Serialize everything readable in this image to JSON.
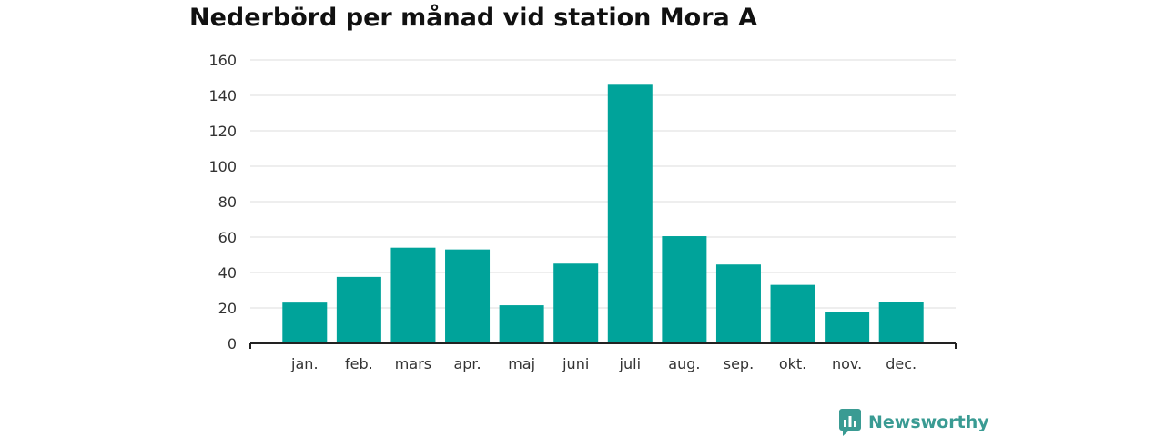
{
  "chart_data": {
    "type": "bar",
    "title": "Nederbörd per månad vid station Mora A",
    "categories": [
      "jan.",
      "feb.",
      "mars",
      "apr.",
      "maj",
      "juni",
      "juli",
      "aug.",
      "sep.",
      "okt.",
      "nov.",
      "dec."
    ],
    "values": [
      23,
      37.5,
      54,
      53,
      21.5,
      45,
      146,
      60.5,
      44.5,
      33,
      17.5,
      23.5
    ],
    "yticks": [
      "0",
      "20",
      "40",
      "60",
      "80",
      "100",
      "120",
      "140",
      "160"
    ],
    "ylim": [
      0,
      160
    ],
    "xlabel": "",
    "ylabel": "",
    "grid": true,
    "bar_color": "#00a39a"
  },
  "branding": {
    "name": "Newsworthy",
    "icon": "bar-chart-logo-icon",
    "color": "#3a9b93"
  }
}
